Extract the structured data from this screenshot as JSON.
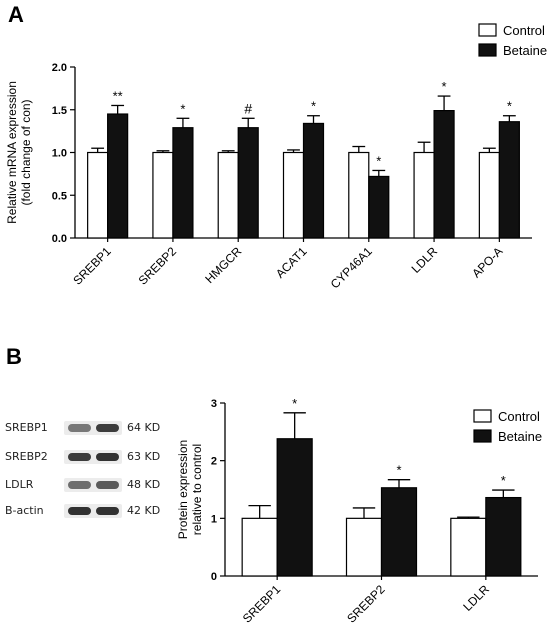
{
  "panel_a": {
    "label": "A",
    "legend": [
      "Control",
      "Betaine"
    ]
  },
  "panel_b": {
    "label": "B",
    "legend": [
      "Control",
      "Betaine"
    ],
    "western_blot": [
      {
        "protein": "SREBP1",
        "size": "64 KD",
        "control_intensity": 0.55,
        "betaine_intensity": 0.85
      },
      {
        "protein": "SREBP2",
        "size": "63 KD",
        "control_intensity": 0.85,
        "betaine_intensity": 0.9
      },
      {
        "protein": "LDLR",
        "size": "48 KD",
        "control_intensity": 0.6,
        "betaine_intensity": 0.7
      },
      {
        "protein": "B-actin",
        "size": "42 KD",
        "control_intensity": 0.9,
        "betaine_intensity": 0.9
      }
    ]
  },
  "colors": {
    "control": "#ffffff",
    "betaine": "#111111",
    "stroke": "#000000"
  },
  "chart_data": [
    {
      "type": "bar",
      "title": "",
      "ylabel": "Relative mRNA expression\n(fold change of con)",
      "xlabel": "",
      "categories": [
        "SREBP1",
        "SREBP2",
        "HMGCR",
        "ACAT1",
        "CYP46A1",
        "LDLR",
        "APO-A"
      ],
      "ylim": [
        0,
        2.0
      ],
      "yticks": [
        "0.0",
        "0.5",
        "1.0",
        "1.5",
        "2.0"
      ],
      "series": [
        {
          "name": "Control",
          "values": [
            1.0,
            1.0,
            1.0,
            1.0,
            1.0,
            1.0,
            1.0
          ],
          "errors": [
            0.05,
            0.02,
            0.02,
            0.03,
            0.07,
            0.12,
            0.05
          ]
        },
        {
          "name": "Betaine",
          "values": [
            1.45,
            1.29,
            1.29,
            1.34,
            0.72,
            1.49,
            1.36
          ],
          "errors": [
            0.1,
            0.11,
            0.11,
            0.09,
            0.07,
            0.17,
            0.07
          ]
        }
      ],
      "annotations": [
        "**",
        "*",
        "#",
        "*",
        "*",
        "*",
        "*"
      ],
      "legend_position": "top-right",
      "grid": false
    },
    {
      "type": "bar",
      "title": "",
      "ylabel": "Protein expression\nrelative to control",
      "xlabel": "",
      "categories": [
        "SREBP1",
        "SREBP2",
        "LDLR"
      ],
      "ylim": [
        0,
        3
      ],
      "yticks": [
        "0",
        "1",
        "2",
        "3"
      ],
      "series": [
        {
          "name": "Control",
          "values": [
            1.0,
            1.0,
            1.0
          ],
          "errors": [
            0.22,
            0.18,
            0.02
          ]
        },
        {
          "name": "Betaine",
          "values": [
            2.38,
            1.53,
            1.36
          ],
          "errors": [
            0.45,
            0.14,
            0.13
          ]
        }
      ],
      "annotations": [
        "*",
        "*",
        "*"
      ],
      "legend_position": "top-right",
      "grid": false
    }
  ]
}
